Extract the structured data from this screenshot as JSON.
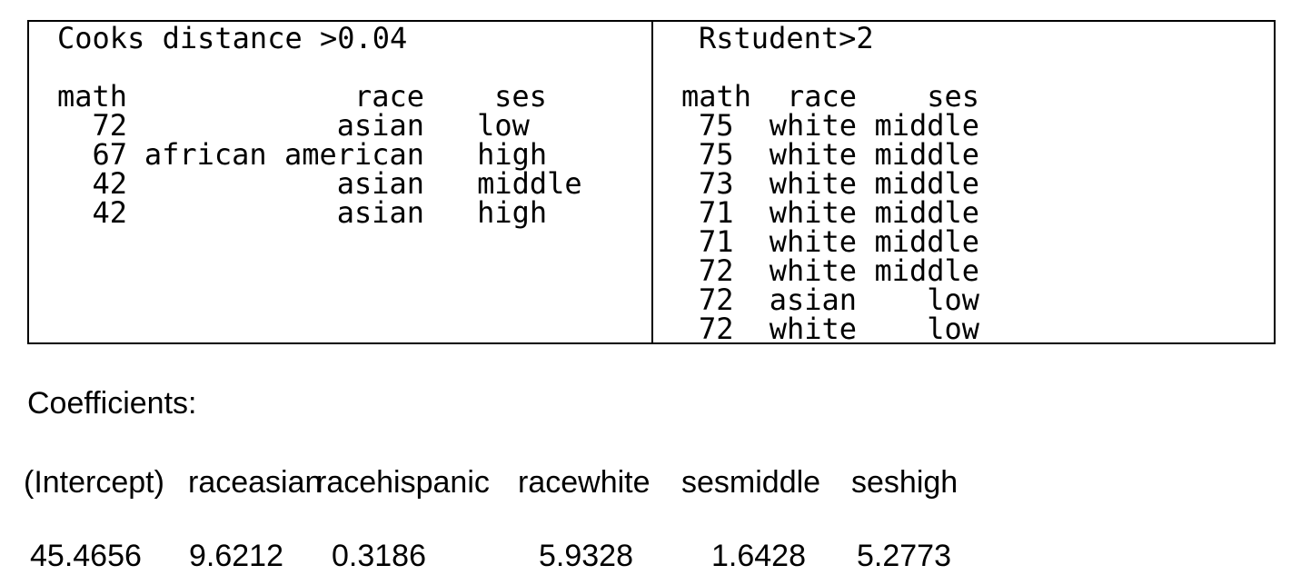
{
  "page": {
    "background": "#ffffff",
    "text_color": "#000000",
    "box_border_color": "#000000"
  },
  "outlier_box": {
    "cooks_panel": {
      "title": "Cooks distance >0.04",
      "columns": {
        "math": "math",
        "race": "race",
        "ses": "ses"
      },
      "rows": [
        {
          "math": "72",
          "race": "asian",
          "ses": "low"
        },
        {
          "math": "67",
          "race": "african american",
          "ses": "high"
        },
        {
          "math": "42",
          "race": "asian",
          "ses": "middle"
        },
        {
          "math": "42",
          "race": "asian",
          "ses": "high"
        }
      ]
    },
    "rstudent_panel": {
      "title": "Rstudent>2",
      "columns": {
        "math": "math",
        "race": "race",
        "ses": "ses"
      },
      "rows": [
        {
          "math": "75",
          "race": "white",
          "ses": "middle"
        },
        {
          "math": "75",
          "race": "white",
          "ses": "middle"
        },
        {
          "math": "73",
          "race": "white",
          "ses": "middle"
        },
        {
          "math": "71",
          "race": "white",
          "ses": "middle"
        },
        {
          "math": "71",
          "race": "white",
          "ses": "middle"
        },
        {
          "math": "72",
          "race": "white",
          "ses": "middle"
        },
        {
          "math": "72",
          "race": "asian",
          "ses": "low"
        },
        {
          "math": "72",
          "race": "white",
          "ses": "low"
        }
      ]
    }
  },
  "coefficients": {
    "label": "Coefficients:",
    "terms": [
      "(Intercept)",
      "raceasian",
      "racehispanic",
      "racewhite",
      "sesmiddle",
      "seshigh"
    ],
    "values": [
      "45.4656",
      "9.6212",
      "0.3186",
      "5.9328",
      "1.6428",
      "5.2773"
    ]
  }
}
